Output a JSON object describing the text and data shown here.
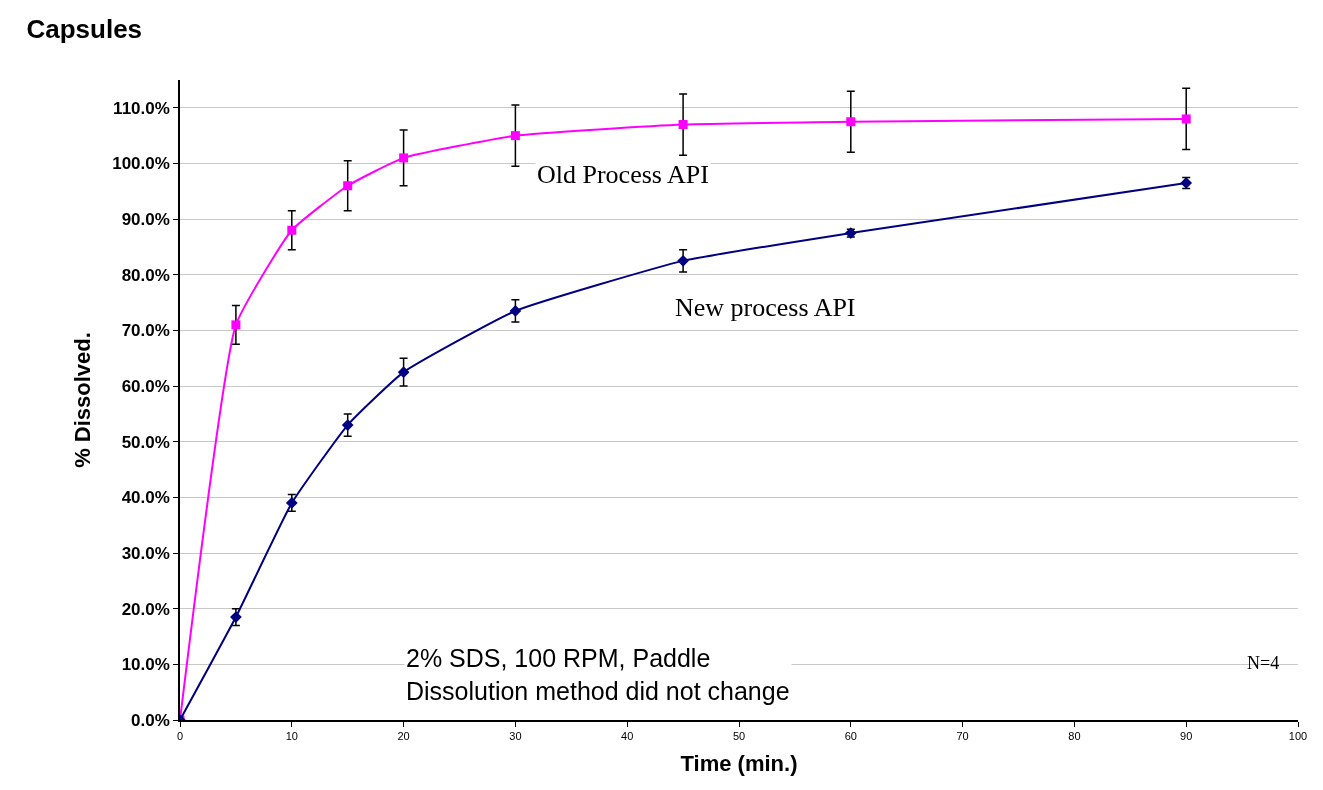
{
  "chart_data": {
    "type": "line",
    "title": "Capsules",
    "xlabel": "Time (min.)",
    "ylabel": "% Dissolved.",
    "x": [
      0,
      5,
      10,
      15,
      20,
      30,
      45,
      60,
      90
    ],
    "series": [
      {
        "name": "Old Process API",
        "color": "#ff00ff",
        "marker": "square",
        "values": [
          0,
          71,
          88,
          96,
          101,
          105,
          107,
          107.5,
          108
        ],
        "errors": [
          null,
          3.5,
          3.5,
          4.5,
          5,
          5.5,
          5.5,
          5.5,
          5.5
        ]
      },
      {
        "name": "New process API",
        "color": "#000080",
        "marker": "diamond",
        "values": [
          0,
          18.5,
          39,
          53,
          62.5,
          73.5,
          82.5,
          87.5,
          96.5
        ],
        "errors": [
          null,
          1.5,
          1.5,
          2,
          2.5,
          2,
          2,
          0.7,
          1
        ]
      }
    ],
    "xlim": [
      0,
      100
    ],
    "xticks": [
      0,
      10,
      20,
      30,
      40,
      50,
      60,
      70,
      80,
      90,
      100
    ],
    "ylim": [
      0,
      115
    ],
    "yticks": [
      {
        "value": 0,
        "label": "0.0%"
      },
      {
        "value": 10,
        "label": "10.0%"
      },
      {
        "value": 20,
        "label": "20.0%"
      },
      {
        "value": 30,
        "label": "30.0%"
      },
      {
        "value": 40,
        "label": "40.0%"
      },
      {
        "value": 50,
        "label": "50.0%"
      },
      {
        "value": 60,
        "label": "60.0%"
      },
      {
        "value": 70,
        "label": "70.0%"
      },
      {
        "value": 80,
        "label": "80.0%"
      },
      {
        "value": 90,
        "label": "90.0%"
      },
      {
        "value": 100,
        "label": "100.0%"
      },
      {
        "value": 110,
        "label": "110.0%"
      }
    ],
    "grid": "y",
    "legend": false,
    "line_style": "solid",
    "annotations": [
      "2% SDS, 100 RPM, Paddle\nDissolution method did not change",
      "N=4"
    ]
  }
}
